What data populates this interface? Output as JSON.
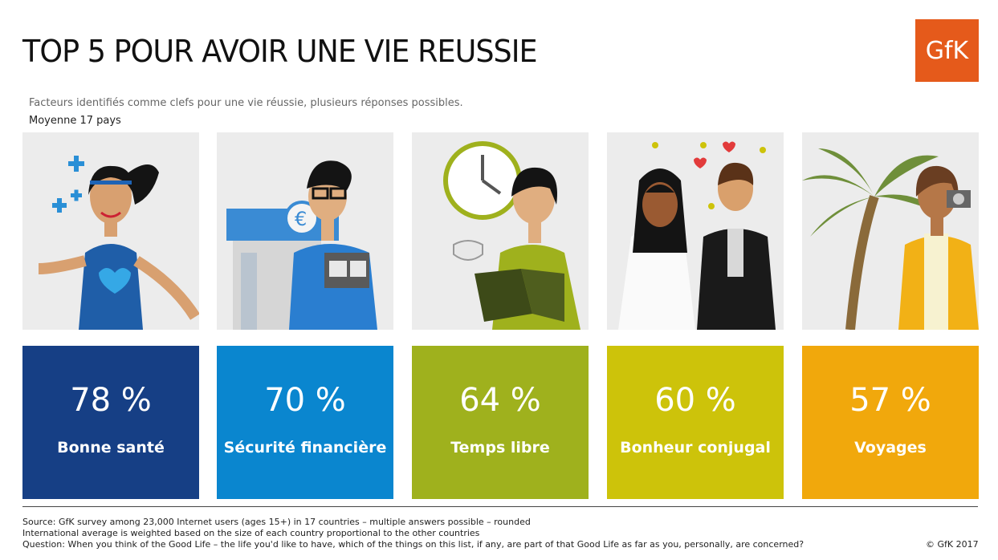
{
  "header": {
    "title": "TOP 5 POUR AVOIR UNE VIE REUSSIE",
    "subtitle": "Facteurs identifiés comme clefs pour une vie réussie, plusieurs réponses possibles.",
    "average": "Moyenne 17 pays",
    "logo": "GfK"
  },
  "items": [
    {
      "pct": "78 %",
      "label": "Bonne santé",
      "color": "#163f85",
      "icon": "health-illustration"
    },
    {
      "pct": "70 %",
      "label": "Sécurité financière",
      "color": "#0a86cf",
      "icon": "finance-illustration"
    },
    {
      "pct": "64 %",
      "label": "Temps libre",
      "color": "#9fb11d",
      "icon": "leisure-illustration"
    },
    {
      "pct": "60 %",
      "label": "Bonheur conjugal",
      "color": "#cdc30a",
      "icon": "wedding-illustration"
    },
    {
      "pct": "57 %",
      "label": "Voyages",
      "color": "#f1a80c",
      "icon": "travel-illustration"
    }
  ],
  "footer": {
    "source": "Source: GfK survey among 23,000 Internet users (ages 15+) in 17 countries – multiple answers possible – rounded",
    "note": "International average is weighted based on the size of each country proportional to the other countries",
    "question": "Question: When you think of the Good Life – the life you'd like to have, which of the things on this list, if any, are part of that Good Life as far as you, personally, are concerned?",
    "copyright": "© GfK 2017"
  }
}
